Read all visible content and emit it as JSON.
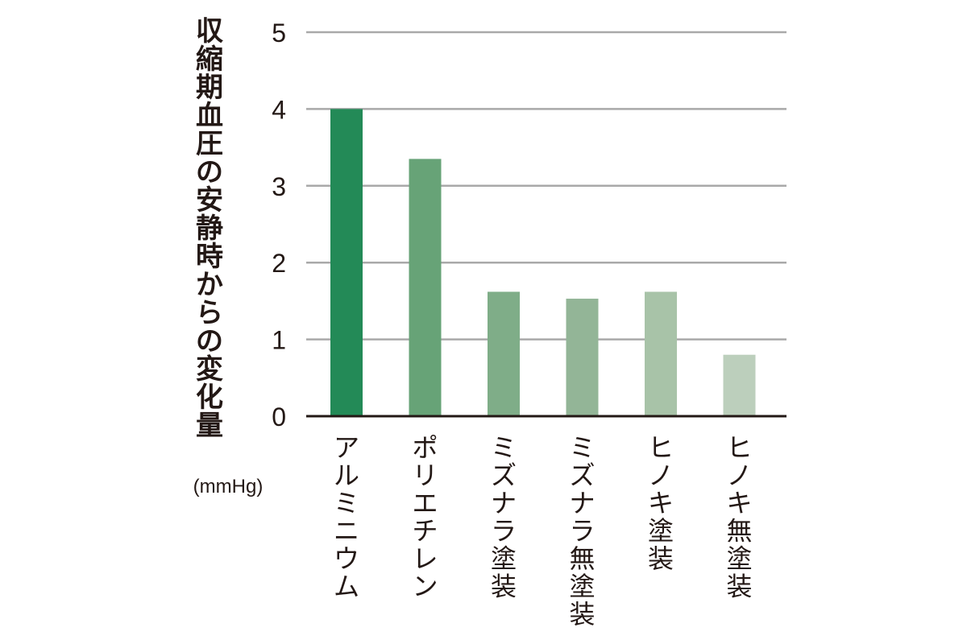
{
  "chart_data": {
    "type": "bar",
    "ylabel": "収縮期血圧の安静時からの変化量",
    "yunit": "(mmHg)",
    "xlabel": "",
    "categories": [
      "アルミニウム",
      "ポリエチレン",
      "ミズナラ塗装",
      "ミズナラ無塗装",
      "ヒノキ塗装",
      "ヒノキ無塗装"
    ],
    "values": [
      4.0,
      3.35,
      1.62,
      1.53,
      1.62,
      0.8
    ],
    "ylim": [
      0,
      5
    ],
    "yticks": [
      0,
      1,
      2,
      3,
      4,
      5
    ],
    "ytick_labels": [
      "0",
      "1",
      "2",
      "3",
      "4",
      "5"
    ],
    "grid": true,
    "bar_colors": [
      "#238a57",
      "#67a377",
      "#7fad88",
      "#93b597",
      "#a8c3a8",
      "#bccfbc"
    ],
    "gridline_color": "#a9a9a9",
    "baseline_color": "#231815"
  }
}
